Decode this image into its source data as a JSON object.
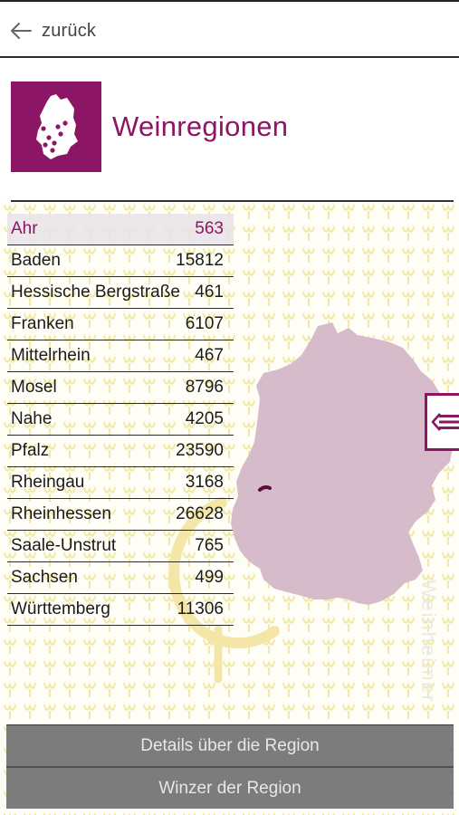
{
  "nav": {
    "back_label": "zurück",
    "back_icon": "arrow-left-icon"
  },
  "header": {
    "title": "Weinregionen",
    "logo_icon": "germany-map-icon",
    "brand_color": "#8d1565"
  },
  "regions": [
    {
      "name": "Ahr",
      "count": "563",
      "selected": true
    },
    {
      "name": "Baden",
      "count": "15812"
    },
    {
      "name": "Hessische Bergstraße",
      "count": "461"
    },
    {
      "name": "Franken",
      "count": "6107"
    },
    {
      "name": "Mittelrhein",
      "count": "467"
    },
    {
      "name": "Mosel",
      "count": "8796"
    },
    {
      "name": "Nahe",
      "count": "4205"
    },
    {
      "name": "Pfalz",
      "count": "23590"
    },
    {
      "name": "Rheingau",
      "count": "3168"
    },
    {
      "name": "Rheinhessen",
      "count": "26628"
    },
    {
      "name": "Saale-Unstrut",
      "count": "765"
    },
    {
      "name": "Sachsen",
      "count": "499"
    },
    {
      "name": "Württemberg",
      "count": "11306"
    }
  ],
  "map": {
    "fill_color": "#d6bcca",
    "highlight_color": "#5a0d3e"
  },
  "side_toggle_icon": "list-icon",
  "actions": {
    "details_label": "Details über die Region",
    "winzer_label": "Winzer der Region"
  }
}
